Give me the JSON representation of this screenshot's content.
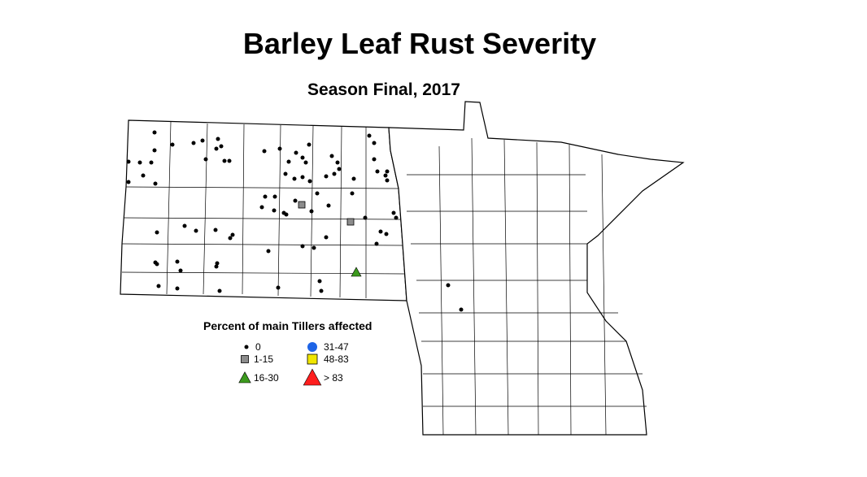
{
  "title": "Barley Leaf Rust Severity",
  "subtitle": "Season Final, 2017",
  "legend": {
    "title": "Percent of main Tillers affected",
    "items": [
      {
        "label": "0",
        "shape": "dot",
        "color": "#000000"
      },
      {
        "label": "1-15",
        "shape": "square",
        "color": "#8c8c8c"
      },
      {
        "label": "16-30",
        "shape": "triangle",
        "color": "#3c9a1e"
      },
      {
        "label": "31-47",
        "shape": "circle",
        "color": "#1e64e6"
      },
      {
        "label": "48-83",
        "shape": "square",
        "color": "#f0e600"
      },
      {
        "label": "> 83",
        "shape": "triangle",
        "color": "#ff1e1e"
      }
    ]
  }
}
